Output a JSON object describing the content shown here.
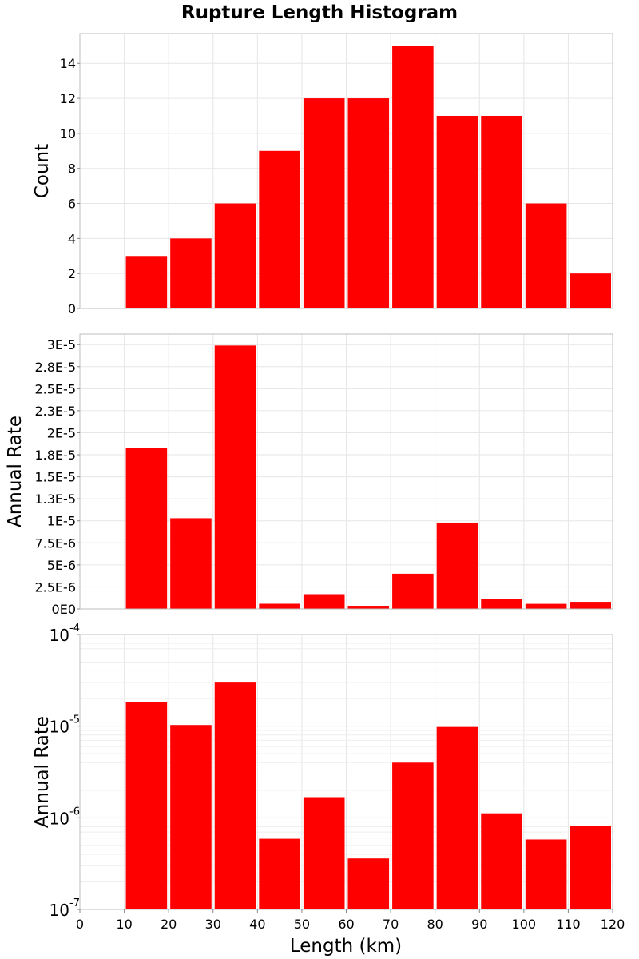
{
  "chart_data": {
    "type": "bar",
    "title": "Rupture Length Histogram",
    "xlabel": "Length (km)",
    "xlim": [
      0,
      120
    ],
    "x_ticks": [
      "0",
      "10",
      "20",
      "30",
      "40",
      "50",
      "60",
      "70",
      "80",
      "90",
      "100",
      "110",
      "120"
    ],
    "bin_width": 10,
    "bin_centers": [
      15,
      25,
      35,
      45,
      55,
      65,
      75,
      85,
      95,
      105,
      115
    ],
    "bar_color": "#ff0000",
    "grid": true,
    "panels": [
      {
        "ylabel": "Count",
        "scale": "linear",
        "ylim": [
          0,
          15.7
        ],
        "y_ticks": [
          {
            "v": 0,
            "label": "0"
          },
          {
            "v": 2,
            "label": "2"
          },
          {
            "v": 4,
            "label": "4"
          },
          {
            "v": 6,
            "label": "6"
          },
          {
            "v": 8,
            "label": "8"
          },
          {
            "v": 10,
            "label": "10"
          },
          {
            "v": 12,
            "label": "12"
          },
          {
            "v": 14,
            "label": "14"
          }
        ],
        "values": [
          3,
          4,
          6,
          9,
          12,
          12,
          15,
          11,
          11,
          6,
          2
        ]
      },
      {
        "ylabel": "Annual Rate",
        "scale": "linear",
        "ylim": [
          0,
          3.12e-05
        ],
        "y_ticks": [
          {
            "v": 0,
            "label": "0E0"
          },
          {
            "v": 2.5e-06,
            "label": "2.5E-6"
          },
          {
            "v": 5e-06,
            "label": "5E-6"
          },
          {
            "v": 7.5e-06,
            "label": "7.5E-6"
          },
          {
            "v": 1e-05,
            "label": "1E-5"
          },
          {
            "v": 1.25e-05,
            "label": "1.3E-5"
          },
          {
            "v": 1.5e-05,
            "label": "1.5E-5"
          },
          {
            "v": 1.75e-05,
            "label": "1.8E-5"
          },
          {
            "v": 2e-05,
            "label": "2E-5"
          },
          {
            "v": 2.25e-05,
            "label": "2.3E-5"
          },
          {
            "v": 2.5e-05,
            "label": "2.5E-5"
          },
          {
            "v": 2.75e-05,
            "label": "2.8E-5"
          },
          {
            "v": 3e-05,
            "label": "3E-5"
          }
        ],
        "values": [
          1.83e-05,
          1.03e-05,
          2.99e-05,
          5.9e-07,
          1.68e-06,
          3.6e-07,
          4e-06,
          9.8e-06,
          1.12e-06,
          5.8e-07,
          8.1e-07
        ]
      },
      {
        "ylabel": "Annual Rate",
        "scale": "log",
        "ylim": [
          1e-07,
          0.0001
        ],
        "y_ticks": [
          {
            "v": 1e-07,
            "base": "10",
            "exp": "-7"
          },
          {
            "v": 1e-06,
            "base": "10",
            "exp": "-6"
          },
          {
            "v": 1e-05,
            "base": "10",
            "exp": "-5"
          },
          {
            "v": 0.0001,
            "base": "10",
            "exp": "-4"
          }
        ],
        "values": [
          1.83e-05,
          1.03e-05,
          2.99e-05,
          5.9e-07,
          1.68e-06,
          3.6e-07,
          4e-06,
          9.8e-06,
          1.12e-06,
          5.8e-07,
          8.1e-07
        ]
      }
    ]
  }
}
